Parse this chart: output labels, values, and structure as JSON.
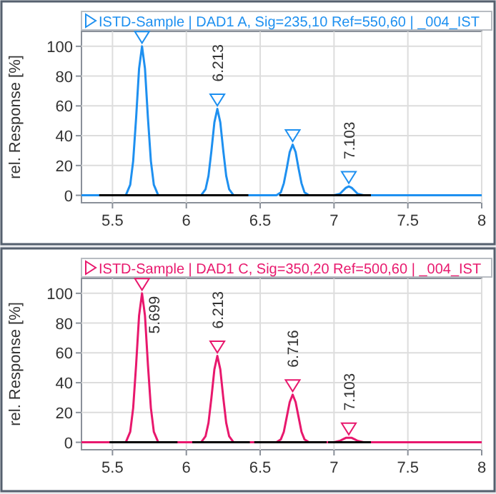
{
  "chart_data": [
    {
      "type": "line",
      "title": "ISTD-Sample | DAD1 A, Sig=235,10 Ref=550,60 | _004_IST",
      "ylabel": "rel. Response [%]",
      "xlim": [
        5.29,
        8
      ],
      "ylim": [
        -5,
        110
      ],
      "xticks": [
        5.5,
        6,
        6.5,
        7,
        7.5,
        8
      ],
      "yticks": [
        0,
        20,
        40,
        60,
        80,
        100
      ],
      "grid": true,
      "series": [
        {
          "color": "#1e90f0",
          "x": [
            5.29,
            5.59,
            5.62,
            5.64,
            5.66,
            5.68,
            5.7,
            5.72,
            5.74,
            5.76,
            5.78,
            5.81,
            6.1,
            6.13,
            6.15,
            6.17,
            6.19,
            6.21,
            6.23,
            6.25,
            6.27,
            6.29,
            6.32,
            6.61,
            6.64,
            6.66,
            6.68,
            6.7,
            6.72,
            6.74,
            6.76,
            6.78,
            6.8,
            6.83,
            7,
            7.04,
            7.06,
            7.08,
            7.1,
            7.12,
            7.14,
            7.16,
            7.2,
            8
          ],
          "values": [
            0,
            0,
            7,
            23,
            52,
            85,
            100,
            85,
            52,
            23,
            7,
            0,
            0,
            4,
            13,
            30,
            49,
            58,
            49,
            30,
            13,
            4,
            0,
            0,
            2,
            8,
            18,
            29,
            34,
            29,
            18,
            8,
            2,
            0,
            0,
            1,
            3,
            5,
            6,
            5,
            3,
            1,
            0,
            0
          ]
        },
        {
          "type": "line",
          "color": "#000000",
          "x": [
            5.41,
            6.42,
            null,
            6.63,
            7.25
          ],
          "values": [
            0,
            0,
            null,
            0,
            0
          ]
        },
        {
          "type": "scatter",
          "marker": "triangle",
          "color": "#1e90f0",
          "x": [
            5.7,
            6.21,
            6.72,
            7.1
          ],
          "values": [
            106,
            64,
            40,
            12
          ]
        }
      ],
      "annotations": [
        {
          "text": "6.213",
          "x": 6.21,
          "y": 58
        },
        {
          "text": "7.103",
          "x": 7.1,
          "y": 6
        }
      ]
    },
    {
      "type": "line",
      "title": "ISTD-Sample | DAD1 C, Sig=350,20 Ref=500,60 | _004_IST",
      "ylabel": "rel. Response [%]",
      "xlim": [
        5.29,
        8
      ],
      "ylim": [
        -5,
        110
      ],
      "xticks": [
        5.5,
        6,
        6.5,
        7,
        7.5,
        8
      ],
      "yticks": [
        0,
        20,
        40,
        60,
        80,
        100
      ],
      "grid": true,
      "series": [
        {
          "color": "#e8186d",
          "x": [
            5.29,
            5.59,
            5.62,
            5.64,
            5.66,
            5.68,
            5.7,
            5.72,
            5.74,
            5.76,
            5.78,
            5.81,
            6.1,
            6.13,
            6.15,
            6.17,
            6.19,
            6.21,
            6.23,
            6.25,
            6.27,
            6.29,
            6.32,
            6.61,
            6.64,
            6.66,
            6.68,
            6.7,
            6.72,
            6.74,
            6.76,
            6.78,
            6.8,
            6.83,
            7,
            7.04,
            7.06,
            7.08,
            7.1,
            7.12,
            7.14,
            7.16,
            7.2,
            8
          ],
          "values": [
            0,
            0,
            7,
            23,
            52,
            85,
            100,
            85,
            52,
            23,
            7,
            0,
            0,
            4,
            13,
            30,
            49,
            58,
            49,
            30,
            13,
            4,
            0,
            0,
            2,
            7,
            17,
            27,
            32,
            27,
            17,
            7,
            2,
            0,
            0,
            1,
            2,
            3,
            3,
            3,
            2,
            1,
            0,
            0
          ]
        },
        {
          "type": "line",
          "color": "#000000",
          "x": [
            5.48,
            5.94,
            null,
            6.04,
            6.43,
            null,
            6.46,
            6.95,
            null,
            6.96,
            7.25
          ],
          "values": [
            0,
            0,
            null,
            0,
            0,
            null,
            0,
            0,
            null,
            0,
            0
          ]
        },
        {
          "type": "scatter",
          "marker": "triangle",
          "color": "#e8186d",
          "x": [
            5.7,
            6.21,
            6.72,
            7.1
          ],
          "values": [
            106,
            64,
            38,
            9
          ]
        }
      ],
      "annotations": [
        {
          "text": "5.699",
          "x": 5.7,
          "y": 100
        },
        {
          "text": "6.213",
          "x": 6.21,
          "y": 58
        },
        {
          "text": "6.716",
          "x": 6.72,
          "y": 32
        },
        {
          "text": "7.103",
          "x": 7.1,
          "y": 3
        }
      ]
    }
  ]
}
